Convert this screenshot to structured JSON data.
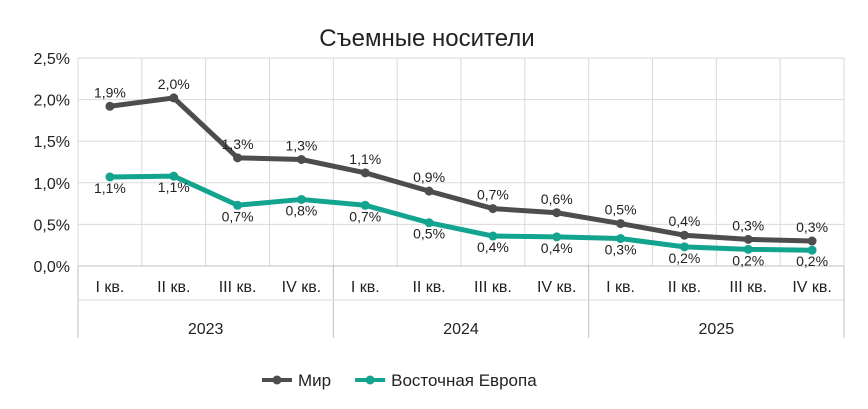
{
  "chart_data": {
    "type": "line",
    "title": "Съемные носители",
    "categories": [
      "I кв.",
      "II кв.",
      "III кв.",
      "IV кв.",
      "I кв.",
      "II кв.",
      "III кв.",
      "IV кв.",
      "I кв.",
      "II кв.",
      "III кв.",
      "IV кв."
    ],
    "years": [
      "2023",
      "2024",
      "2025"
    ],
    "ylim": [
      0,
      2.5
    ],
    "y_ticks": [
      0,
      0.5,
      1.0,
      1.5,
      2.0,
      2.5
    ],
    "y_tick_labels": [
      "0,0%",
      "0,5%",
      "1,0%",
      "1,5%",
      "2,0%",
      "2,5%"
    ],
    "grid": true,
    "legend_position": "bottom",
    "series": [
      {
        "name": "Мир",
        "color": "#4d4d4d",
        "values": [
          1.92,
          2.02,
          1.3,
          1.28,
          1.12,
          0.9,
          0.69,
          0.64,
          0.51,
          0.37,
          0.32,
          0.3
        ],
        "labels": [
          "1,9%",
          "2,0%",
          "1,3%",
          "1,3%",
          "1,1%",
          "0,9%",
          "0,7%",
          "0,6%",
          "0,5%",
          "0,4%",
          "0,3%",
          "0,3%"
        ]
      },
      {
        "name": "Восточная Европа",
        "color": "#12a48e",
        "values": [
          1.07,
          1.08,
          0.73,
          0.8,
          0.73,
          0.52,
          0.36,
          0.35,
          0.33,
          0.23,
          0.2,
          0.19
        ],
        "labels": [
          "1,1%",
          "1,1%",
          "0,7%",
          "0,8%",
          "0,7%",
          "0,5%",
          "0,4%",
          "0,4%",
          "0,3%",
          "0,2%",
          "0,2%",
          "0,2%"
        ]
      }
    ]
  }
}
